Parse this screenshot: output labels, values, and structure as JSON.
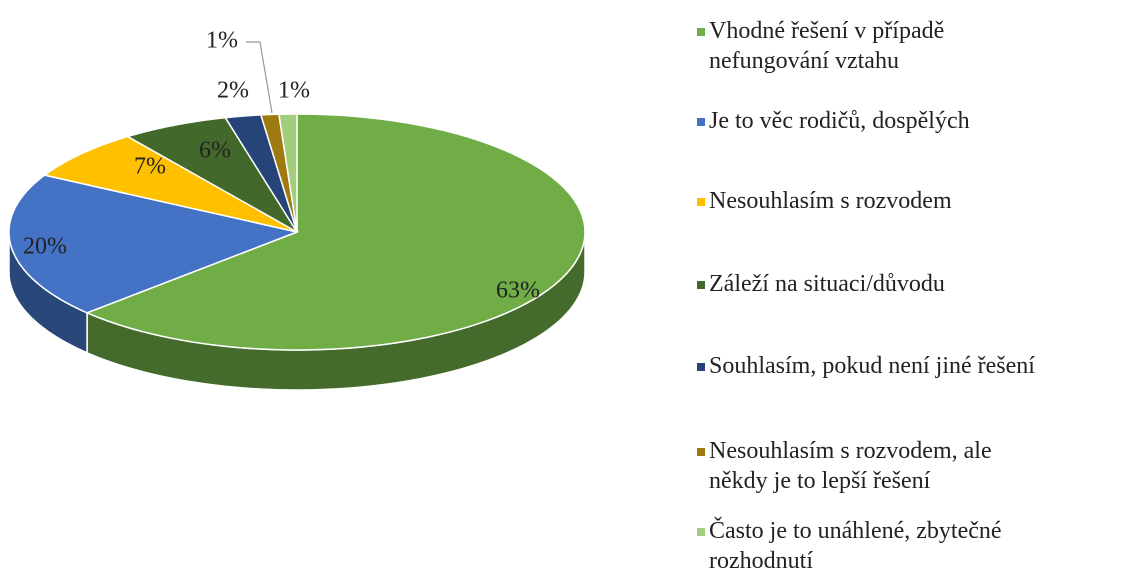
{
  "chart_data": {
    "type": "pie",
    "categories": [
      "Vhodné řešení v případě nefungování vztahu",
      "Je to věc rodičů, dospělých",
      "Nesouhlasím s rozvodem",
      "Záleží na situaci/důvodu",
      "Souhlasím, pokud není jiné řešení",
      "Nesouhlasím s rozvodem, ale někdy je to lepší řešení",
      "Často je to unáhlené, zbytečné rozhodnutí"
    ],
    "values": [
      63,
      20,
      7,
      6,
      2,
      1,
      1
    ],
    "value_labels": [
      "63%",
      "20%",
      "7%",
      "6%",
      "2%",
      "1%",
      "1%"
    ],
    "colors": [
      "#70ad47",
      "#4472c4",
      "#ffc000",
      "#43682b",
      "#264478",
      "#9e7a10",
      "#a2cc7e"
    ],
    "legend": "right"
  }
}
